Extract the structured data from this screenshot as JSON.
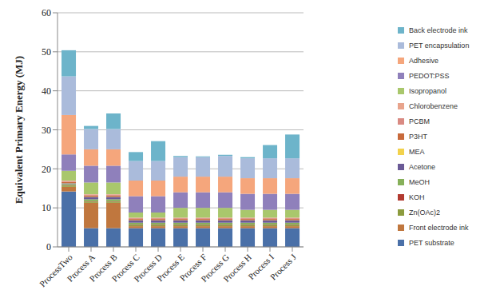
{
  "chart_data": {
    "type": "bar",
    "stacked": true,
    "grid": true,
    "legend": "right",
    "y_label": "Equivalent Primary Energy (MJ)",
    "categories": [
      "ProcessTwo",
      "Process A",
      "Process B",
      "Process C",
      "Process D",
      "Process E",
      "Process F",
      "Process G",
      "Process H",
      "Process I",
      "Process J"
    ],
    "ylim": [
      0,
      60
    ],
    "yticks": [
      0,
      10,
      20,
      30,
      40,
      50,
      60
    ],
    "series": [
      {
        "name": "PET substrate",
        "color": "#4a70a8",
        "values": [
          14.2,
          4.8,
          4.8,
          4.8,
          4.8,
          4.8,
          4.8,
          4.8,
          4.8,
          4.8,
          4.8
        ]
      },
      {
        "name": "Front electrode ink",
        "color": "#c0773e",
        "values": [
          1.2,
          6.5,
          6.5,
          0.5,
          0.5,
          0.5,
          0.5,
          0.5,
          0.5,
          0.5,
          0.5
        ]
      },
      {
        "name": "Zn(OAc)2",
        "color": "#8c9b3e",
        "values": [
          0.3,
          0.3,
          0.3,
          0.3,
          0.3,
          0.3,
          0.3,
          0.3,
          0.3,
          0.3,
          0.3
        ]
      },
      {
        "name": "KOH",
        "color": "#b23a30",
        "values": [
          0.1,
          0.1,
          0.1,
          0.1,
          0.1,
          0.1,
          0.1,
          0.1,
          0.1,
          0.1,
          0.1
        ]
      },
      {
        "name": "MeOH",
        "color": "#86b05a",
        "values": [
          0.3,
          0.5,
          0.5,
          0.5,
          0.5,
          0.5,
          0.5,
          0.5,
          0.5,
          0.5,
          0.5
        ]
      },
      {
        "name": "Acetone",
        "color": "#6a5a96",
        "values": [
          0.2,
          0.6,
          0.6,
          0.6,
          0.6,
          0.6,
          0.6,
          0.6,
          0.6,
          0.6,
          0.6
        ]
      },
      {
        "name": "MEA",
        "color": "#f2d24c",
        "values": [
          0.05,
          0.05,
          0.05,
          0.05,
          0.05,
          0.05,
          0.05,
          0.05,
          0.05,
          0.05,
          0.05
        ]
      },
      {
        "name": "P3HT",
        "color": "#c86a3c",
        "values": [
          0.3,
          0.3,
          0.3,
          0.3,
          0.3,
          0.3,
          0.3,
          0.3,
          0.3,
          0.3,
          0.3
        ]
      },
      {
        "name": "PCBM",
        "color": "#d98a82",
        "values": [
          0.2,
          0.2,
          0.2,
          0.2,
          0.2,
          0.2,
          0.2,
          0.2,
          0.2,
          0.2,
          0.2
        ]
      },
      {
        "name": "Chlorobenzene",
        "color": "#e8a48c",
        "values": [
          0.15,
          0.15,
          0.15,
          0.15,
          0.15,
          0.15,
          0.15,
          0.15,
          0.15,
          0.15,
          0.15
        ]
      },
      {
        "name": "Isopropanol",
        "color": "#a9c76c",
        "values": [
          2.5,
          3.0,
          3.0,
          1.3,
          1.3,
          2.5,
          2.5,
          2.5,
          2.0,
          2.0,
          2.0
        ]
      },
      {
        "name": "PEDOT:PSS",
        "color": "#8f80bb",
        "values": [
          4.2,
          4.3,
          4.3,
          4.2,
          4.2,
          4.0,
          4.0,
          4.0,
          4.1,
          4.1,
          4.1
        ]
      },
      {
        "name": "Adhesive",
        "color": "#f5a67c",
        "values": [
          10.1,
          4.2,
          4.2,
          4.0,
          4.0,
          4.0,
          4.0,
          4.0,
          4.0,
          4.0,
          4.0
        ]
      },
      {
        "name": "PET encapsulation",
        "color": "#aabbdb",
        "values": [
          9.9,
          5.2,
          5.2,
          5.0,
          5.0,
          5.0,
          5.0,
          5.3,
          5.1,
          5.1,
          5.1
        ]
      },
      {
        "name": "Back electrode ink",
        "color": "#6db4ca",
        "values": [
          6.7,
          0.8,
          4.0,
          2.3,
          5.1,
          0.3,
          0.2,
          0.3,
          0.3,
          3.4,
          6.1
        ]
      }
    ]
  }
}
